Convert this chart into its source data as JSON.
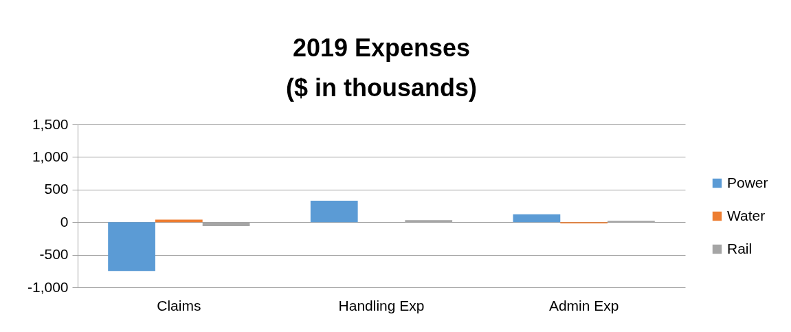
{
  "chart_data": {
    "type": "bar",
    "title": "2019 Expenses\n($ in thousands)",
    "categories": [
      "Claims",
      "Handling Exp",
      "Admin Exp"
    ],
    "series": [
      {
        "name": "Power",
        "color": "#5b9bd5",
        "values": [
          -750,
          330,
          120
        ]
      },
      {
        "name": "Water",
        "color": "#ed7d31",
        "values": [
          40,
          0,
          -20
        ]
      },
      {
        "name": "Rail",
        "color": "#a5a5a5",
        "values": [
          -60,
          30,
          20
        ]
      }
    ],
    "ylim": [
      -1000,
      1500
    ],
    "yticks": [
      {
        "value": -1000,
        "label": "-1,000"
      },
      {
        "value": -500,
        "label": "-500"
      },
      {
        "value": 0,
        "label": "0"
      },
      {
        "value": 500,
        "label": "500"
      },
      {
        "value": 1000,
        "label": "1,000"
      },
      {
        "value": 1500,
        "label": "1,500"
      }
    ],
    "grid": "y",
    "legend": "right"
  }
}
